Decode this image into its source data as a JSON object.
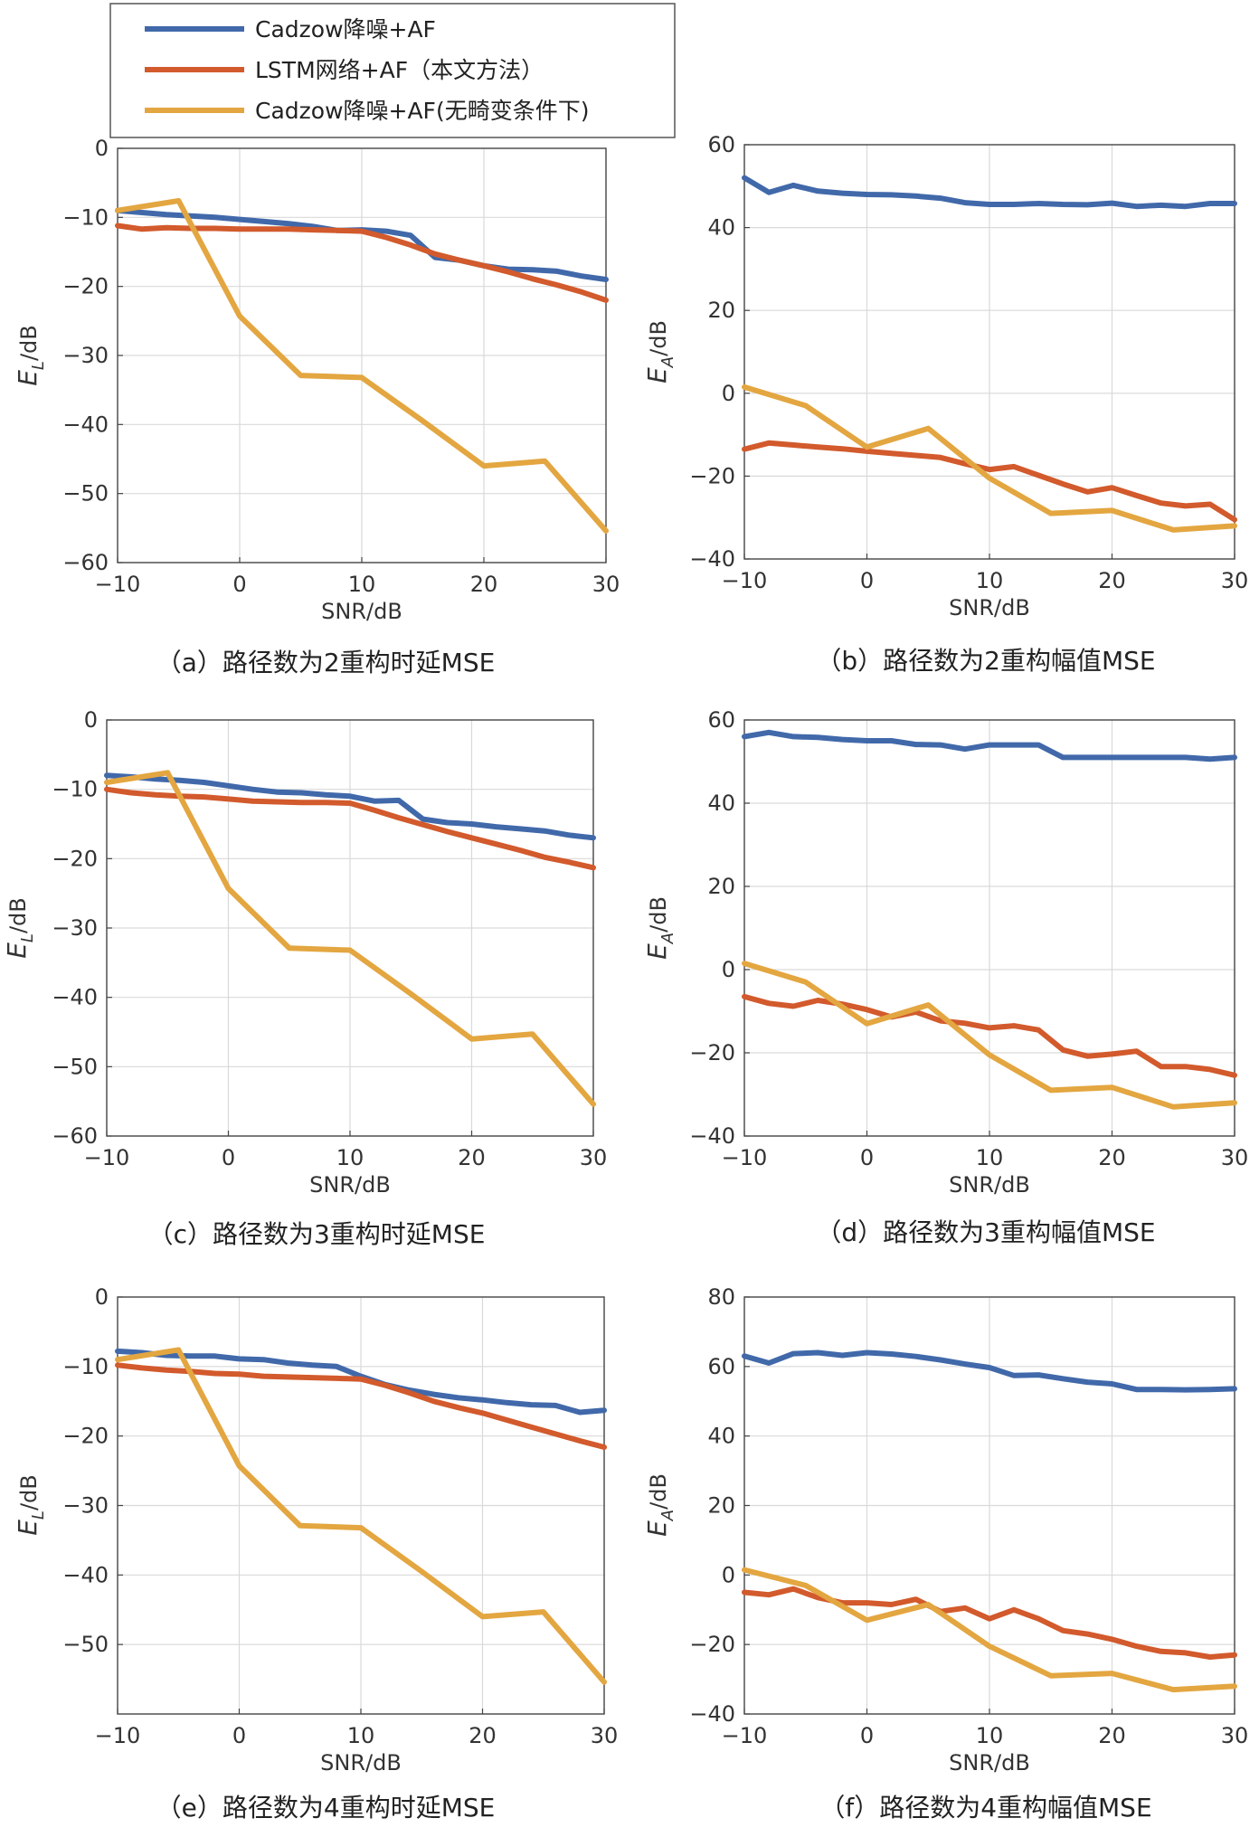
{
  "legend": {
    "entries": [
      {
        "label": "Cadzow降噪+AF",
        "color": "#4169aa"
      },
      {
        "label": "LSTM网络+AF（本文方法）",
        "color": "#d25a2c"
      },
      {
        "label": "Cadzow降噪+AF(无畸变条件下)",
        "color": "#e3a640"
      }
    ]
  },
  "chart_data": [
    {
      "id": "a",
      "type": "line",
      "caption": "（a）路径数为2重构时延MSE",
      "xlabel": "SNR/dB",
      "ylabel": "E_L/dB",
      "xlim": [
        -10,
        30
      ],
      "ylim": [
        -60,
        0
      ],
      "xticks": [
        "−10",
        "0",
        "10",
        "20",
        "30"
      ],
      "yticks": [
        "0",
        "−10",
        "−20",
        "−30",
        "−40",
        "−50",
        "−60"
      ],
      "grid": true,
      "series": [
        {
          "name": "Cadzow降噪+AF",
          "color": "#4169aa",
          "x": [
            -10,
            -8,
            -6,
            -4,
            -2,
            0,
            2,
            4,
            6,
            8,
            10,
            12,
            14,
            16,
            18,
            20,
            22,
            24,
            26,
            28,
            30
          ],
          "y": [
            -9,
            -9.3,
            -9.6,
            -9.8,
            -10,
            -10.3,
            -10.6,
            -10.9,
            -11.3,
            -11.9,
            -11.8,
            -12,
            -12.6,
            -15.8,
            -16.2,
            -17,
            -17.5,
            -17.6,
            -17.8,
            -18.5,
            -19
          ]
        },
        {
          "name": "LSTM网络+AF（本文方法）",
          "color": "#d25a2c",
          "x": [
            -10,
            -8,
            -6,
            -4,
            -2,
            0,
            2,
            4,
            6,
            8,
            10,
            12,
            14,
            16,
            18,
            20,
            22,
            24,
            26,
            28,
            30
          ],
          "y": [
            -11.2,
            -11.7,
            -11.5,
            -11.6,
            -11.6,
            -11.7,
            -11.7,
            -11.7,
            -11.8,
            -11.9,
            -12,
            -12.9,
            -14,
            -15.3,
            -16.2,
            -17,
            -17.9,
            -18.9,
            -19.8,
            -20.8,
            -22
          ]
        },
        {
          "name": "Cadzow降噪+AF(无畸变条件下)",
          "color": "#e3a640",
          "x": [
            -10,
            -5,
            0,
            5,
            10,
            15,
            20,
            25,
            30
          ],
          "y": [
            -9,
            -7.6,
            -24.3,
            -32.9,
            -33.2,
            -39.5,
            -46,
            -45.3,
            -55.4
          ]
        }
      ]
    },
    {
      "id": "b",
      "type": "line",
      "caption": "（b）路径数为2重构幅值MSE",
      "xlabel": "SNR/dB",
      "ylabel": "E_A/dB",
      "xlim": [
        -10,
        30
      ],
      "ylim": [
        -40,
        60
      ],
      "xticks": [
        "−10",
        "0",
        "10",
        "20",
        "30"
      ],
      "yticks": [
        "60",
        "40",
        "20",
        "0",
        "−20",
        "−40"
      ],
      "grid": true,
      "series": [
        {
          "name": "Cadzow降噪+AF",
          "color": "#4169aa",
          "x": [
            -10,
            -8,
            -6,
            -4,
            -2,
            0,
            2,
            4,
            6,
            8,
            10,
            12,
            14,
            16,
            18,
            20,
            22,
            24,
            26,
            28,
            30
          ],
          "y": [
            52,
            48.5,
            50.2,
            48.8,
            48.3,
            48,
            47.9,
            47.6,
            47.1,
            46,
            45.6,
            45.6,
            45.8,
            45.6,
            45.5,
            45.9,
            45.1,
            45.4,
            45.1,
            45.8,
            45.8
          ]
        },
        {
          "name": "LSTM网络+AF（本文方法）",
          "color": "#d25a2c",
          "x": [
            -10,
            -8,
            -6,
            -4,
            -2,
            0,
            2,
            4,
            6,
            8,
            10,
            12,
            14,
            16,
            18,
            20,
            22,
            24,
            26,
            28,
            30
          ],
          "y": [
            -13.5,
            -12,
            -12.5,
            -13,
            -13.4,
            -14,
            -14.5,
            -15,
            -15.5,
            -17,
            -18.4,
            -17.7,
            -19.8,
            -21.9,
            -23.8,
            -22.8,
            -24.7,
            -26.5,
            -27.2,
            -26.8,
            -30.5
          ]
        },
        {
          "name": "Cadzow降噪+AF(无畸变条件下)",
          "color": "#e3a640",
          "x": [
            -10,
            -5,
            0,
            5,
            10,
            15,
            20,
            25,
            30
          ],
          "y": [
            1.5,
            -3,
            -13,
            -8.5,
            -20.5,
            -29,
            -28.3,
            -33,
            -32
          ]
        }
      ]
    },
    {
      "id": "c",
      "type": "line",
      "caption": "（c）路径数为3重构时延MSE",
      "xlabel": "SNR/dB",
      "ylabel": "E_L/dB",
      "xlim": [
        -10,
        30
      ],
      "ylim": [
        -60,
        0
      ],
      "xticks": [
        "−10",
        "0",
        "10",
        "20",
        "30"
      ],
      "yticks": [
        "0",
        "−10",
        "−20",
        "−30",
        "−40",
        "−50",
        "−60"
      ],
      "grid": true,
      "series": [
        {
          "name": "Cadzow降噪+AF",
          "color": "#4169aa",
          "x": [
            -10,
            -8,
            -6,
            -4,
            -2,
            0,
            2,
            4,
            6,
            8,
            10,
            12,
            14,
            16,
            18,
            20,
            22,
            24,
            26,
            28,
            30
          ],
          "y": [
            -8,
            -8.2,
            -8.5,
            -8.7,
            -9,
            -9.5,
            -10,
            -10.4,
            -10.5,
            -10.8,
            -11,
            -11.7,
            -11.6,
            -14.3,
            -14.8,
            -15,
            -15.4,
            -15.7,
            -16,
            -16.6,
            -17
          ]
        },
        {
          "name": "LSTM网络+AF（本文方法）",
          "color": "#d25a2c",
          "x": [
            -10,
            -8,
            -6,
            -4,
            -2,
            0,
            2,
            4,
            6,
            8,
            10,
            12,
            14,
            16,
            18,
            20,
            22,
            24,
            26,
            28,
            30
          ],
          "y": [
            -10,
            -10.5,
            -10.8,
            -11,
            -11.1,
            -11.4,
            -11.7,
            -11.8,
            -11.9,
            -11.9,
            -12,
            -13,
            -14.1,
            -15.1,
            -16.1,
            -17,
            -17.9,
            -18.8,
            -19.8,
            -20.5,
            -21.3
          ]
        },
        {
          "name": "Cadzow降噪+AF(无畸变条件下)",
          "color": "#e3a640",
          "x": [
            -10,
            -5,
            0,
            5,
            10,
            15,
            20,
            25,
            30
          ],
          "y": [
            -9,
            -7.6,
            -24.3,
            -32.9,
            -33.2,
            -39.5,
            -46,
            -45.3,
            -55.4
          ]
        }
      ]
    },
    {
      "id": "d",
      "type": "line",
      "caption": "（d）路径数为3重构幅值MSE",
      "xlabel": "SNR/dB",
      "ylabel": "E_A/dB",
      "xlim": [
        -10,
        30
      ],
      "ylim": [
        -40,
        60
      ],
      "xticks": [
        "−10",
        "0",
        "10",
        "20",
        "30"
      ],
      "yticks": [
        "60",
        "40",
        "20",
        "0",
        "−20",
        "−40"
      ],
      "grid": true,
      "series": [
        {
          "name": "Cadzow降噪+AF",
          "color": "#4169aa",
          "x": [
            -10,
            -8,
            -6,
            -4,
            -2,
            0,
            2,
            4,
            6,
            8,
            10,
            12,
            14,
            16,
            18,
            20,
            22,
            24,
            26,
            28,
            30
          ],
          "y": [
            56,
            57,
            56,
            55.8,
            55.3,
            55,
            55,
            54.1,
            54,
            53,
            54,
            54,
            54,
            51,
            51,
            51,
            51,
            51,
            51,
            50.6,
            51
          ]
        },
        {
          "name": "LSTM网络+AF（本文方法）",
          "color": "#d25a2c",
          "x": [
            -10,
            -8,
            -6,
            -4,
            -2,
            0,
            2,
            4,
            6,
            8,
            10,
            12,
            14,
            16,
            18,
            20,
            22,
            24,
            26,
            28,
            30
          ],
          "y": [
            -6.5,
            -8.1,
            -8.8,
            -7.4,
            -8.3,
            -9.6,
            -11.4,
            -10.2,
            -12.3,
            -12.9,
            -14,
            -13.5,
            -14.5,
            -19.3,
            -20.8,
            -20.3,
            -19.6,
            -23.3,
            -23.3,
            -24,
            -25.4
          ]
        },
        {
          "name": "Cadzow降噪+AF(无畸变条件下)",
          "color": "#e3a640",
          "x": [
            -10,
            -5,
            0,
            5,
            10,
            15,
            20,
            25,
            30
          ],
          "y": [
            1.5,
            -3,
            -13,
            -8.5,
            -20.5,
            -29,
            -28.3,
            -33,
            -32
          ]
        }
      ]
    },
    {
      "id": "e",
      "type": "line",
      "caption": "（e）路径数为4重构时延MSE",
      "xlabel": "SNR/dB",
      "ylabel": "E_L/dB",
      "xlim": [
        -10,
        30
      ],
      "ylim": [
        -60,
        0
      ],
      "xticks": [
        "−10",
        "0",
        "10",
        "20",
        "30"
      ],
      "yticks": [
        "0",
        "−10",
        "−20",
        "−30",
        "−40",
        "−50"
      ],
      "grid": true,
      "series": [
        {
          "name": "Cadzow降噪+AF",
          "color": "#4169aa",
          "x": [
            -10,
            -8,
            -6,
            -4,
            -2,
            0,
            2,
            4,
            6,
            8,
            10,
            12,
            14,
            16,
            18,
            20,
            22,
            24,
            26,
            28,
            30
          ],
          "y": [
            -7.8,
            -8,
            -8.4,
            -8.5,
            -8.5,
            -8.9,
            -9,
            -9.5,
            -9.8,
            -10,
            -11.4,
            -12.6,
            -13.4,
            -14,
            -14.5,
            -14.8,
            -15.2,
            -15.5,
            -15.6,
            -16.6,
            -16.3
          ]
        },
        {
          "name": "LSTM网络+AF（本文方法）",
          "color": "#d25a2c",
          "x": [
            -10,
            -8,
            -6,
            -4,
            -2,
            0,
            2,
            4,
            6,
            8,
            10,
            12,
            14,
            16,
            18,
            20,
            22,
            24,
            26,
            28,
            30
          ],
          "y": [
            -9.8,
            -10.2,
            -10.5,
            -10.7,
            -11,
            -11.1,
            -11.4,
            -11.5,
            -11.6,
            -11.7,
            -11.8,
            -12.7,
            -13.8,
            -15,
            -15.9,
            -16.7,
            -17.7,
            -18.7,
            -19.7,
            -20.7,
            -21.6
          ]
        },
        {
          "name": "Cadzow降噪+AF(无畸变条件下)",
          "color": "#e3a640",
          "x": [
            -10,
            -5,
            0,
            5,
            10,
            15,
            20,
            25,
            30
          ],
          "y": [
            -9,
            -7.6,
            -24.3,
            -32.9,
            -33.2,
            -39.5,
            -46,
            -45.3,
            -55.4
          ]
        }
      ]
    },
    {
      "id": "f",
      "type": "line",
      "caption": "（f）路径数为4重构幅值MSE",
      "xlabel": "SNR/dB",
      "ylabel": "E_A/dB",
      "xlim": [
        -10,
        30
      ],
      "ylim": [
        -40,
        80
      ],
      "xticks": [
        "−10",
        "0",
        "10",
        "20",
        "30"
      ],
      "yticks": [
        "80",
        "60",
        "40",
        "20",
        "0",
        "−20",
        "−40"
      ],
      "grid": true,
      "series": [
        {
          "name": "Cadzow降噪+AF",
          "color": "#4169aa",
          "x": [
            -10,
            -8,
            -6,
            -4,
            -2,
            0,
            2,
            4,
            6,
            8,
            10,
            12,
            14,
            16,
            18,
            20,
            22,
            24,
            26,
            28,
            30
          ],
          "y": [
            63,
            61,
            63.7,
            64,
            63.2,
            64,
            63.6,
            62.9,
            61.9,
            60.7,
            59.7,
            57.4,
            57.6,
            56.5,
            55.5,
            55,
            53.4,
            53.4,
            53.3,
            53.4,
            53.6
          ]
        },
        {
          "name": "LSTM网络+AF（本文方法）",
          "color": "#d25a2c",
          "x": [
            -10,
            -8,
            -6,
            -4,
            -2,
            0,
            2,
            4,
            6,
            8,
            10,
            12,
            14,
            16,
            18,
            20,
            22,
            24,
            26,
            28,
            30
          ],
          "y": [
            -5,
            -5.7,
            -4,
            -6.5,
            -8,
            -8,
            -8.5,
            -7,
            -10.5,
            -9.5,
            -12.6,
            -10,
            -12.6,
            -16,
            -17,
            -18.5,
            -20.5,
            -22,
            -22.4,
            -23.6,
            -23
          ]
        },
        {
          "name": "Cadzow降噪+AF(无畸变条件下)",
          "color": "#e3a640",
          "x": [
            -10,
            -5,
            0,
            5,
            10,
            15,
            20,
            25,
            30
          ],
          "y": [
            1.5,
            -3,
            -13,
            -8.5,
            -20.5,
            -29,
            -28.3,
            -33,
            -32
          ]
        }
      ]
    }
  ]
}
